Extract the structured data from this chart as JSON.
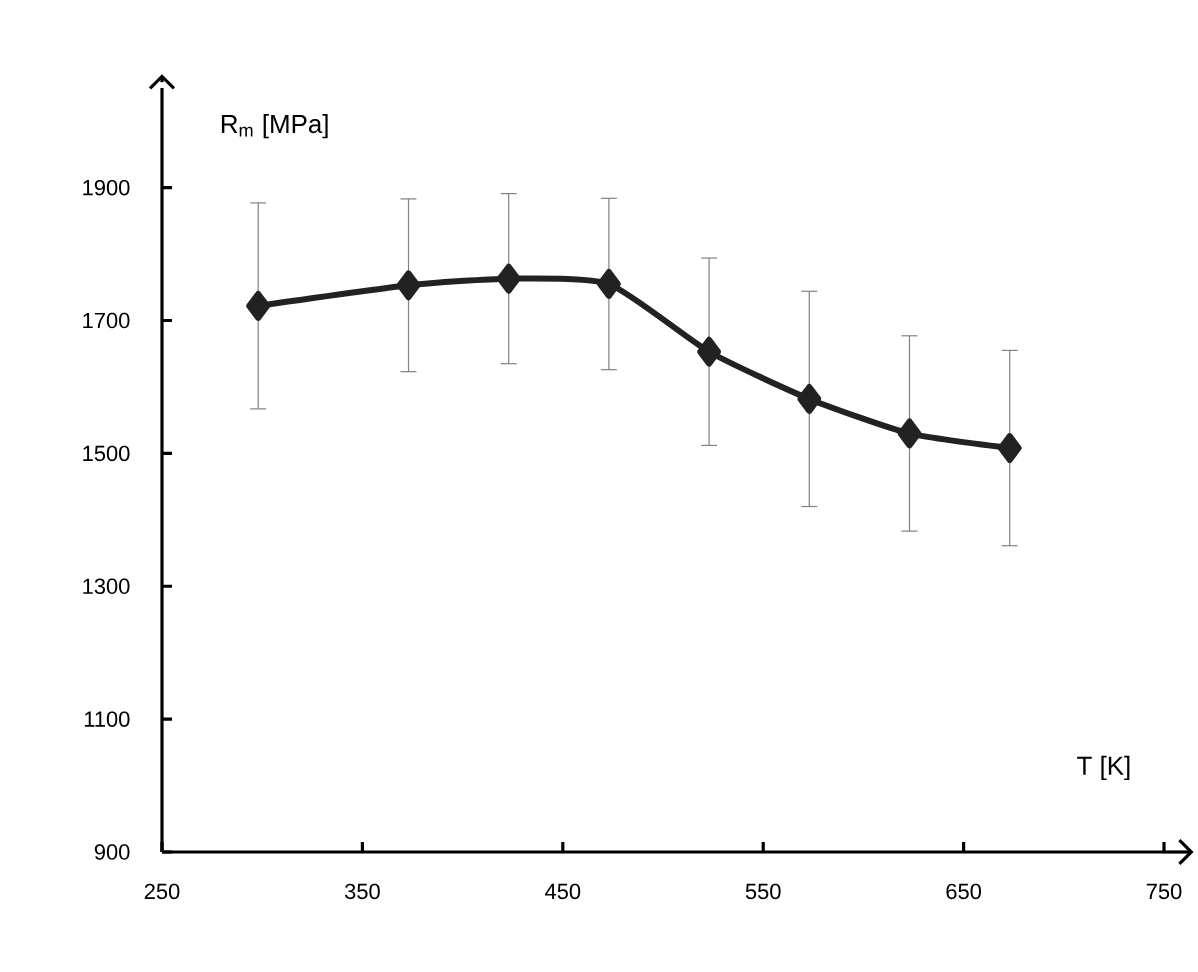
{
  "chart_data": {
    "type": "line",
    "xlabel": "T [K]",
    "ylabel": "R$_{m}$ [MPa]",
    "x": [
      298,
      373,
      423,
      473,
      523,
      573,
      623,
      673
    ],
    "series": [
      {
        "color": "#222222",
        "values": [
          1722,
          1753,
          1763,
          1755,
          1653,
          1582,
          1530,
          1508
        ],
        "errors": [
          155,
          130,
          128,
          129,
          141,
          162,
          147,
          147
        ]
      }
    ],
    "xlim": [
      250,
      750
    ],
    "ylim": [
      900,
      2050
    ],
    "xticks": [
      250,
      350,
      450,
      550,
      650,
      750
    ],
    "yticks": [
      900,
      1100,
      1300,
      1500,
      1700,
      1900
    ],
    "marker": "diamond",
    "line_style": "solid"
  }
}
